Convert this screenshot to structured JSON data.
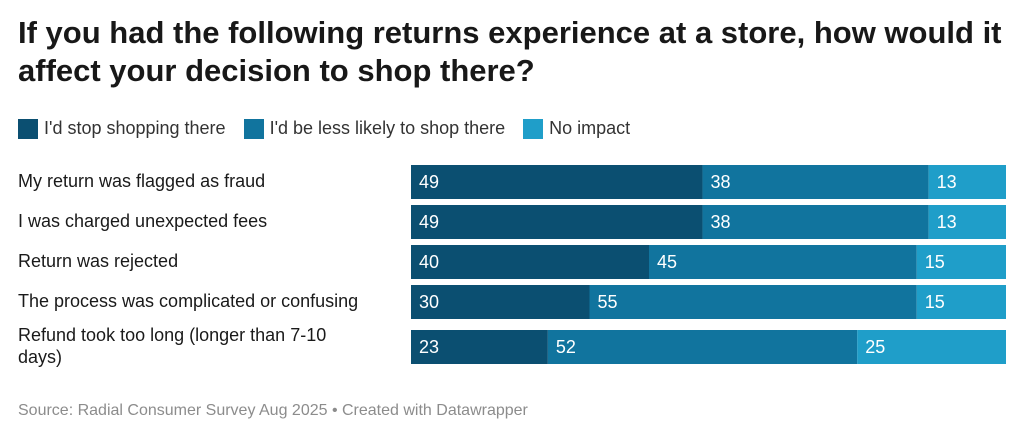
{
  "chart_data": {
    "type": "bar",
    "orientation": "horizontal",
    "stacked": true,
    "title": "If you had the following returns experience at a store, how would it affect your decision to shop there?",
    "categories": [
      [
        "My return was flagged as fraud"
      ],
      [
        "I was charged unexpected fees"
      ],
      [
        "Return was rejected"
      ],
      [
        "The process was complicated or confusing"
      ],
      [
        "Refund took too long (longer than 7-10",
        "days)"
      ]
    ],
    "series": [
      {
        "name": "I'd stop shopping there",
        "color": "#0b4f71",
        "values": [
          49,
          49,
          40,
          30,
          23
        ]
      },
      {
        "name": "I'd be less likely to shop there",
        "color": "#11749e",
        "values": [
          38,
          38,
          45,
          55,
          52
        ]
      },
      {
        "name": "No impact",
        "color": "#1f9ec9",
        "values": [
          13,
          13,
          15,
          15,
          25
        ]
      }
    ],
    "xlim": [
      0,
      100
    ],
    "source": "Source: Radial Consumer Survey Aug 2025 • Created with Datawrapper"
  }
}
